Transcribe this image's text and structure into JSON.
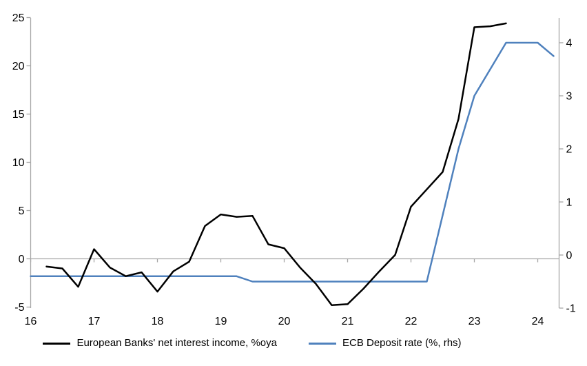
{
  "chart_data": {
    "type": "line",
    "title": "",
    "x_axis": {
      "ticks": [
        16,
        17,
        18,
        19,
        20,
        21,
        22,
        23,
        24
      ],
      "range": [
        16,
        24.35
      ]
    },
    "left_axis": {
      "ticks": [
        -5,
        0,
        5,
        10,
        15,
        20,
        25
      ],
      "range": [
        -5,
        25
      ]
    },
    "right_axis": {
      "ticks": [
        -1,
        0,
        1,
        2,
        3,
        4
      ],
      "range": [
        -1,
        4.45
      ]
    },
    "grid": "zero-line-only",
    "legend_position": "bottom",
    "series": [
      {
        "name": "European Banks' net interest income, %oya",
        "axis": "left",
        "color": "#000000",
        "x": [
          16.25,
          16.5,
          16.75,
          17.0,
          17.25,
          17.5,
          17.75,
          18.0,
          18.25,
          18.5,
          18.75,
          19.0,
          19.25,
          19.5,
          19.75,
          20.0,
          20.25,
          20.5,
          20.75,
          21.0,
          21.25,
          21.5,
          21.75,
          22.0,
          22.25,
          22.5,
          22.75,
          23.0,
          23.25,
          23.5
        ],
        "values": [
          -0.8,
          -1.0,
          -2.9,
          1.0,
          -0.9,
          -1.8,
          -1.4,
          -3.4,
          -1.3,
          -0.3,
          3.4,
          4.6,
          4.35,
          4.45,
          1.5,
          1.1,
          -0.9,
          -2.6,
          -4.8,
          -4.7,
          -3.1,
          -1.3,
          0.4,
          5.4,
          7.2,
          9.0,
          14.5,
          24.0,
          24.1,
          24.4
        ]
      },
      {
        "name": "ECB Deposit rate (%, rhs)",
        "axis": "right",
        "color": "#4f81bd",
        "x": [
          16.0,
          16.25,
          16.5,
          16.75,
          17.0,
          17.25,
          17.5,
          17.75,
          18.0,
          18.25,
          18.5,
          18.75,
          19.0,
          19.25,
          19.5,
          19.75,
          20.0,
          20.25,
          20.5,
          20.75,
          21.0,
          21.25,
          21.5,
          21.75,
          22.0,
          22.25,
          22.5,
          22.75,
          23.0,
          23.25,
          23.5,
          23.75,
          24.0,
          24.25
        ],
        "values": [
          -0.4,
          -0.4,
          -0.4,
          -0.4,
          -0.4,
          -0.4,
          -0.4,
          -0.4,
          -0.4,
          -0.4,
          -0.4,
          -0.4,
          -0.4,
          -0.4,
          -0.5,
          -0.5,
          -0.5,
          -0.5,
          -0.5,
          -0.5,
          -0.5,
          -0.5,
          -0.5,
          -0.5,
          -0.5,
          -0.5,
          0.75,
          2.0,
          3.0,
          3.5,
          4.0,
          4.0,
          4.0,
          3.75
        ]
      }
    ]
  },
  "colors": {
    "background": "#ffffff",
    "axis": "#a6a6a6",
    "text": "#000000",
    "series_black": "#000000",
    "accent_blue": "#4f81bd"
  }
}
